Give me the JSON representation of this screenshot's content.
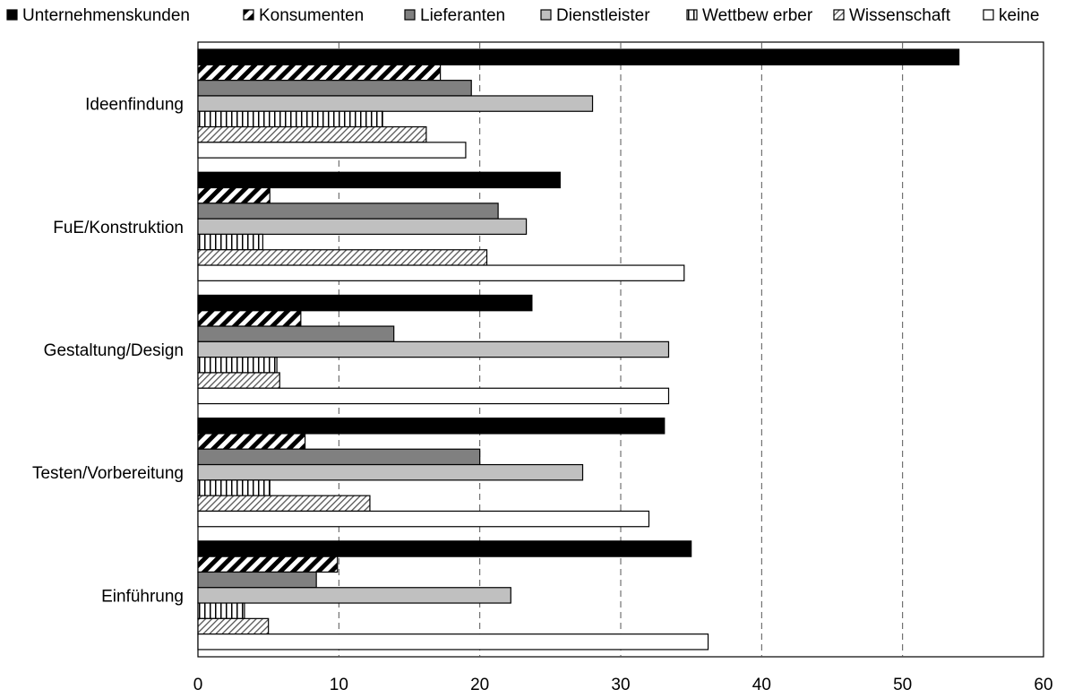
{
  "chart_data": {
    "type": "bar",
    "orientation": "horizontal",
    "categories": [
      "Ideenfindung",
      "FuE/Konstruktion",
      "Gestaltung/Design",
      "Testen/Vorbereitung",
      "Einführung"
    ],
    "series": [
      {
        "name": "Unternehmenskunden",
        "fill": "solid-black",
        "values": [
          54.0,
          25.7,
          23.7,
          33.1,
          35.0
        ]
      },
      {
        "name": "Konsumenten",
        "fill": "diagonal-hatch-bold",
        "values": [
          17.2,
          5.1,
          7.3,
          7.6,
          9.9
        ]
      },
      {
        "name": "Lieferanten",
        "fill": "dark-gray",
        "values": [
          19.4,
          21.3,
          13.9,
          20.0,
          8.4
        ]
      },
      {
        "name": "Dienstleister",
        "fill": "light-gray",
        "values": [
          28.0,
          23.3,
          33.4,
          27.3,
          22.2
        ]
      },
      {
        "name": "Wettbew erber",
        "fill": "vertical-lines",
        "values": [
          13.1,
          4.6,
          5.6,
          5.1,
          3.3
        ]
      },
      {
        "name": "Wissenschaft",
        "fill": "diagonal-fine",
        "values": [
          16.2,
          20.5,
          5.8,
          12.2,
          5.0
        ]
      },
      {
        "name": "keine",
        "fill": "white",
        "values": [
          19.0,
          34.5,
          33.4,
          32.0,
          36.2
        ]
      }
    ],
    "xlim": [
      0,
      60
    ],
    "xticks": [
      "0",
      "10",
      "20",
      "30",
      "40",
      "50",
      "60"
    ],
    "grid": "vertical-dashed",
    "legend_position": "top"
  }
}
